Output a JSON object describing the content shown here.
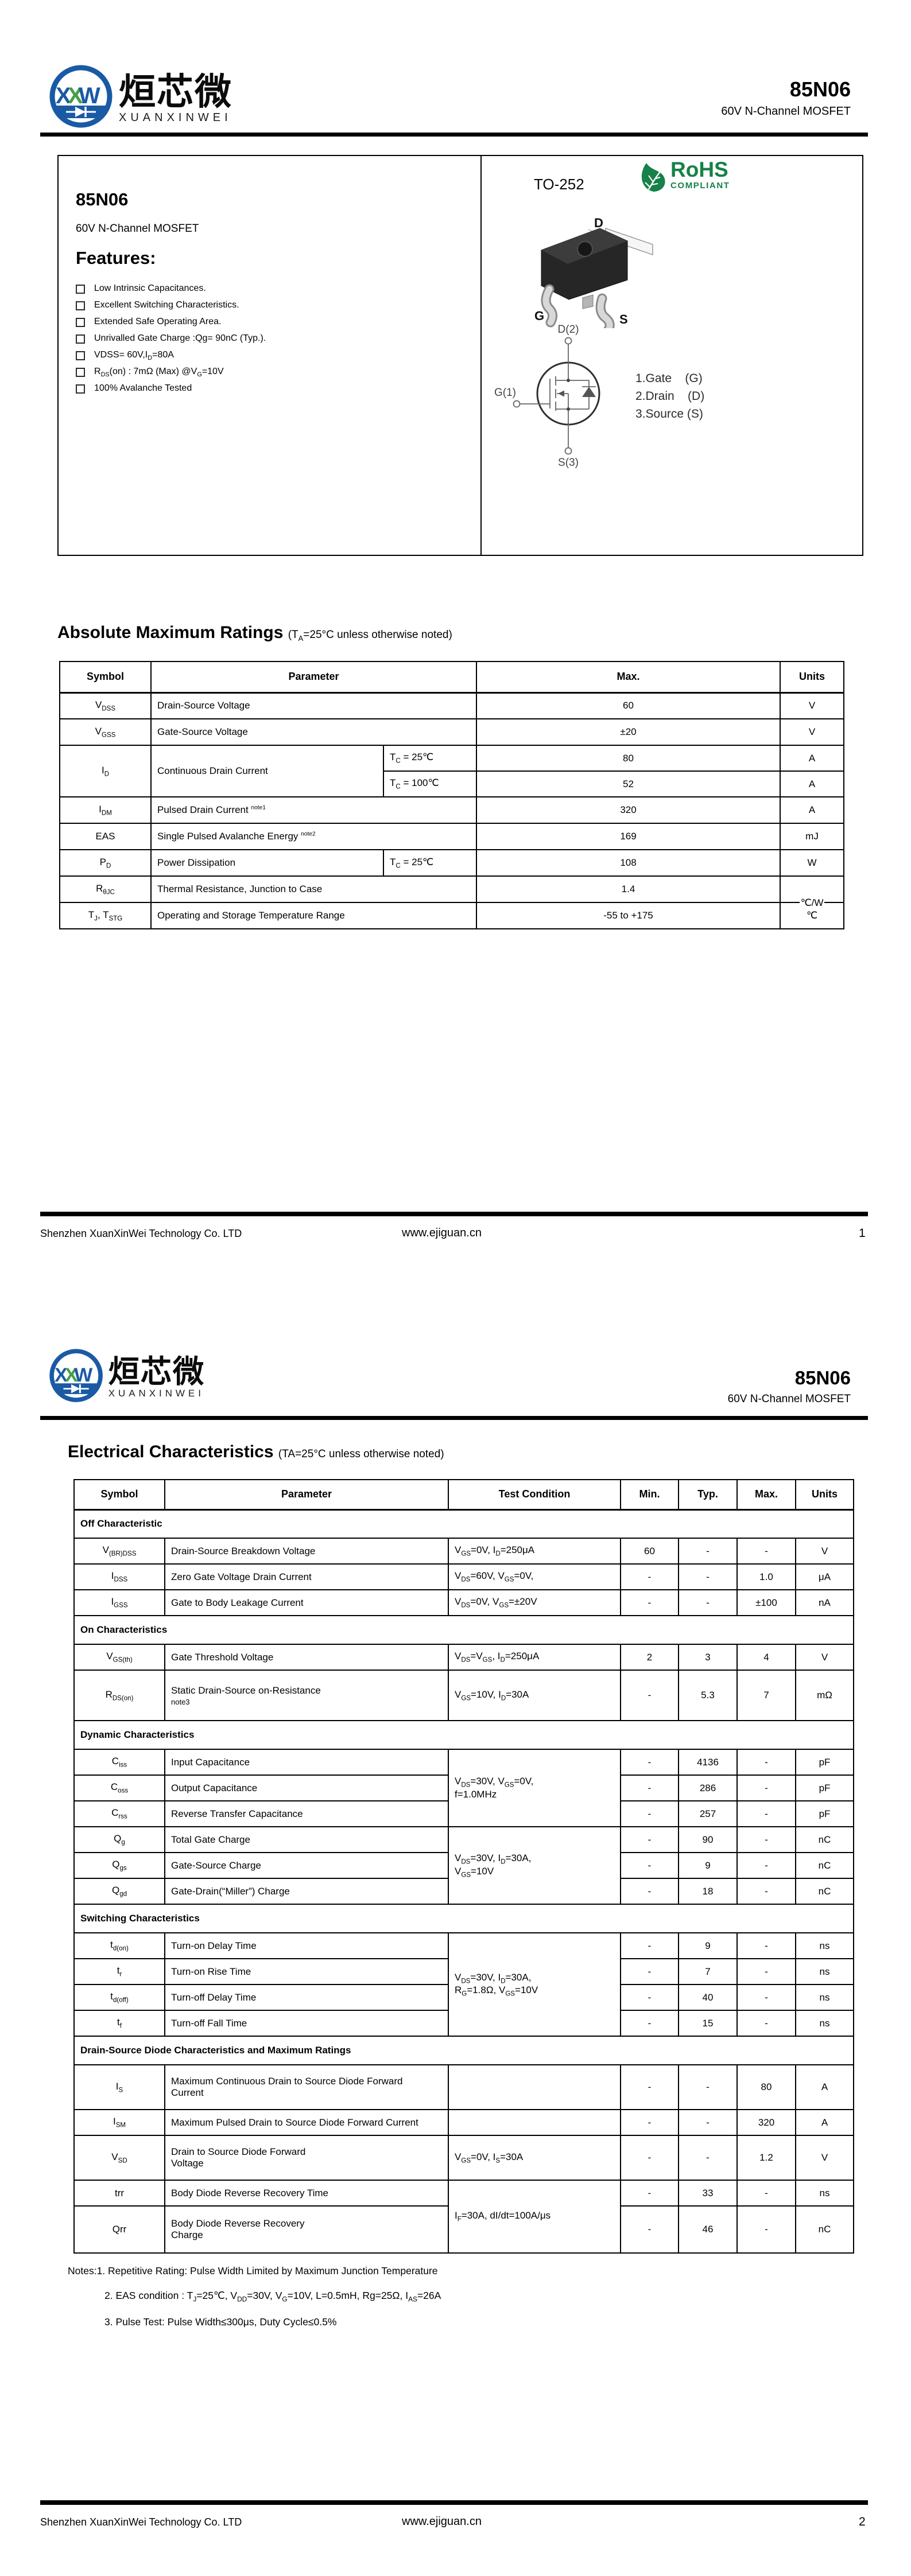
{
  "header": {
    "part": "85N06",
    "family": "60V N-Channel MOSFET",
    "logo": {
      "cn": "烜芯微",
      "en": "XUANXINWEI",
      "m1": "X",
      "m2": "X",
      "m3": "W"
    }
  },
  "footer": {
    "company": "Shenzhen XuanXinWei Technology Co. LTD",
    "website": "www.ejiguan.cn",
    "page1": "1",
    "page2": "2"
  },
  "page1": {
    "product": {
      "part": "85N06",
      "family": "60V N-Channel MOSFET"
    },
    "features": {
      "title": "Features:",
      "items": [
        "Low Intrinsic Capacitances.",
        "Excellent Switching Characteristics.",
        "Extended Safe Operating Area.",
        "Unrivalled Gate Charge :Qg= 90nC (Typ.).",
        "VDSS= 60V,I~D~=80A",
        "R~DS~(on) : 7mΩ (Max) @V~G~=10V",
        "100% Avalanche Tested"
      ]
    },
    "package": {
      "name": "TO-252",
      "rohs_line1": "RoHS",
      "rohs_line2": "COMPLIANT",
      "label_d": "D",
      "label_g": "G",
      "label_s": "S",
      "schematic": {
        "drain": "D(2)",
        "gate": "G(1)",
        "source": "S(3)"
      },
      "legend": "1.Gate    (G)\n2.Drain    (D)\n3.Source (S)"
    },
    "amr": {
      "title": "Absolute Maximum Ratings",
      "subtitle": "(T~A~=25°C unless otherwise noted)",
      "headers": [
        "Symbol",
        "Parameter",
        "Max.",
        "Units"
      ],
      "rows": {
        "vdss": {
          "sym": "V~DSS~",
          "param": "Drain-Source Voltage",
          "max": "60",
          "units": "V"
        },
        "vgss": {
          "sym": "V~GSS~",
          "param": "Gate-Source Voltage",
          "max": "±20",
          "units": "V"
        },
        "id": {
          "sym": "I~D~",
          "param": "Continuous Drain Current",
          "c1": "T~C~ = 25℃",
          "m1": "80",
          "u1": "A",
          "c2": "T~C~ = 100℃",
          "m2": "52",
          "u2": "A"
        },
        "idm": {
          "sym": "I~DM~",
          "param": "Pulsed Drain Current ^note1^",
          "max": "320",
          "units": "A"
        },
        "eas": {
          "sym": "EAS",
          "param": "Single Pulsed Avalanche Energy ^note2^",
          "max": "169",
          "units": "mJ"
        },
        "pd": {
          "sym": "P~D~",
          "param": "Power Dissipation",
          "cond": "T~C~ = 25℃",
          "max": "108",
          "units": "W"
        },
        "rthjc": {
          "sym": "R~θJC~",
          "param": "Thermal Resistance, Junction to Case",
          "max": "1.4",
          "units": "℃/W"
        },
        "tj": {
          "sym": "T~J~, T~STG~",
          "param": "Operating and Storage Temperature Range",
          "max": "-55 to +175",
          "units": "℃"
        }
      }
    }
  },
  "page2": {
    "ec": {
      "title": "Electrical Characteristics",
      "subtitle": "(TA=25°C unless otherwise noted)",
      "headers": [
        "Symbol",
        "Parameter",
        "Test Condition",
        "Min.",
        "Typ.",
        "Max.",
        "Units"
      ],
      "sections": {
        "off": "Off Characteristic",
        "on": "On Characteristics",
        "dyn": "Dynamic Characteristics",
        "sw": "Switching Characteristics",
        "diode": "Drain-Source Diode Characteristics and Maximum Ratings"
      },
      "rows": {
        "vbrdss": {
          "sym": "V~(BR)DSS~",
          "param": "Drain-Source Breakdown Voltage",
          "cond": "V~GS~=0V, I~D~=250μA",
          "min": "60",
          "typ": "-",
          "max": "-",
          "units": "V"
        },
        "idss": {
          "sym": "I~DSS~",
          "param": "Zero Gate Voltage Drain Current",
          "cond": "V~DS~=60V, V~GS~=0V,",
          "min": "-",
          "typ": "-",
          "max": "1.0",
          "units": "μA"
        },
        "igss": {
          "sym": "I~GSS~",
          "param": "Gate to Body Leakage Current",
          "cond": "V~DS~=0V, V~GS~=±20V",
          "min": "-",
          "typ": "-",
          "max": "±100",
          "units": "nA"
        },
        "vgsth": {
          "sym": "V~GS(th)~",
          "param": "Gate Threshold Voltage",
          "cond": "V~DS~=V~GS~, I~D~=250μA",
          "min": "2",
          "typ": "3",
          "max": "4",
          "units": "V"
        },
        "rdson": {
          "sym": "R~DS(on)~",
          "param": "Static Drain-Source on-Resistance",
          "param_note": "note3",
          "cond": "V~GS~=10V, I~D~=30A",
          "min": "-",
          "typ": "5.3",
          "max": "7",
          "units": "mΩ"
        },
        "ciss": {
          "sym": "C~iss~",
          "param": "Input Capacitance",
          "cond_group": "V~DS~=30V, V~GS~=0V,\nf=1.0MHz",
          "min": "-",
          "typ": "4136",
          "max": "-",
          "units": "pF"
        },
        "coss": {
          "sym": "C~oss~",
          "param": "Output Capacitance",
          "min": "-",
          "typ": "286",
          "max": "-",
          "units": "pF"
        },
        "crss": {
          "sym": "C~rss~",
          "param": "Reverse Transfer Capacitance",
          "min": "-",
          "typ": "257",
          "max": "-",
          "units": "pF"
        },
        "qg": {
          "sym": "Q~g~",
          "param": "Total Gate Charge",
          "cond_group": "V~DS~=30V, I~D~=30A,\nV~GS~=10V",
          "min": "-",
          "typ": "90",
          "max": "-",
          "units": "nC"
        },
        "qgs": {
          "sym": "Q~gs~",
          "param": "Gate-Source Charge",
          "min": "-",
          "typ": "9",
          "max": "-",
          "units": "nC"
        },
        "qgd": {
          "sym": "Q~gd~",
          "param": "Gate-Drain(“Miller”) Charge",
          "min": "-",
          "typ": "18",
          "max": "-",
          "units": "nC"
        },
        "tdon": {
          "sym": "t~d(on)~",
          "param": "Turn-on Delay Time",
          "cond_group": "V~DS~=30V, I~D~=30A,\nR~G~=1.8Ω, V~GS~=10V",
          "min": "-",
          "typ": "9",
          "max": "-",
          "units": "ns"
        },
        "tr": {
          "sym": "t~r~",
          "param": "Turn-on Rise Time",
          "min": "-",
          "typ": "7",
          "max": "-",
          "units": "ns"
        },
        "tdoff": {
          "sym": "t~d(off)~",
          "param": "Turn-off Delay Time",
          "min": "-",
          "typ": "40",
          "max": "-",
          "units": "ns"
        },
        "tf": {
          "sym": "t~f~",
          "param": "Turn-off Fall Time",
          "min": "-",
          "typ": "15",
          "max": "-",
          "units": "ns"
        },
        "is": {
          "sym": "I~S~",
          "param": "Maximum Continuous Drain to Source Diode Forward\nCurrent",
          "cond": "",
          "min": "-",
          "typ": "-",
          "max": "80",
          "units": "A"
        },
        "ism": {
          "sym": "I~SM~",
          "param": "Maximum Pulsed Drain to Source Diode Forward Current",
          "cond": "",
          "min": "-",
          "typ": "-",
          "max": "320",
          "units": "A"
        },
        "vsd": {
          "sym": "V~SD~",
          "param": "Drain to Source Diode Forward\nVoltage",
          "cond": "V~GS~=0V, I~S~=30A",
          "min": "-",
          "typ": "-",
          "max": "1.2",
          "units": "V"
        },
        "trr": {
          "sym": "trr",
          "param": "Body Diode Reverse Recovery Time",
          "cond_group": "I~F~=30A, dI/dt=100A/μs",
          "min": "-",
          "typ": "33",
          "max": "-",
          "units": "ns"
        },
        "qrr": {
          "sym": "Qrr",
          "param": "Body Diode Reverse Recovery\nCharge",
          "min": "-",
          "typ": "46",
          "max": "-",
          "units": "nC"
        }
      }
    },
    "notes": {
      "n1": "Notes:1. Repetitive Rating: Pulse Width Limited by Maximum Junction Temperature",
      "n2": "2. EAS condition : T~J~=25℃, V~DD~=30V, V~G~=10V, L=0.5mH, Rg=25Ω, I~AS~=26A",
      "n3": "3. Pulse Test: Pulse Width≤300μs, Duty Cycle≤0.5%"
    }
  }
}
